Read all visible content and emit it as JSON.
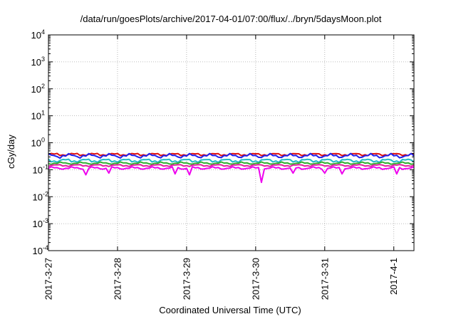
{
  "chart_data": {
    "type": "line",
    "title": "/data/run/goesPlots/archive/2017-04-01/07:00/flux/../bryn/5daysMoon.plot",
    "xlabel": "Coordinated Universal Time (UTC)",
    "ylabel": "cGy/day",
    "y_scale": "log",
    "ylim": [
      0.0001,
      10000
    ],
    "y_ticks": [
      {
        "value": 0.0001,
        "base": "10",
        "exp": "-4"
      },
      {
        "value": 0.001,
        "base": "10",
        "exp": "-3"
      },
      {
        "value": 0.01,
        "base": "10",
        "exp": "-2"
      },
      {
        "value": 0.1,
        "base": "10",
        "exp": "-1"
      },
      {
        "value": 1,
        "base": "10",
        "exp": "0"
      },
      {
        "value": 10,
        "base": "10",
        "exp": "1"
      },
      {
        "value": 100,
        "base": "10",
        "exp": "2"
      },
      {
        "value": 1000,
        "base": "10",
        "exp": "3"
      },
      {
        "value": 10000,
        "base": "10",
        "exp": "4"
      }
    ],
    "xlim": [
      "2017-03-27 00:00",
      "2017-04-01 07:00"
    ],
    "x_ticks": [
      "2017-3-27",
      "2017-3-28",
      "2017-3-29",
      "2017-3-30",
      "2017-3-31",
      "2017-4-1"
    ],
    "grid": true,
    "series": [
      {
        "color": "#e01010",
        "base": 0.37,
        "amp": 0.05
      },
      {
        "color": "#2020ee",
        "base": 0.33,
        "amp": 0.07
      },
      {
        "color": "#22b8c8",
        "base": 0.22,
        "amp": 0.04
      },
      {
        "color": "#30b030",
        "base": 0.175,
        "amp": 0.02
      },
      {
        "color": "#e020a0",
        "base": 0.145,
        "amp": 0.015
      },
      {
        "color": "#ee00ee",
        "base": 0.115,
        "amp": 0.015,
        "dips": [
          [
            "2017-03-27 13:00",
            0.065
          ],
          [
            "2017-03-27 21:00",
            0.075
          ],
          [
            "2017-03-28 20:00",
            0.07
          ],
          [
            "2017-03-29 01:00",
            0.065
          ],
          [
            "2017-03-30 02:00",
            0.034
          ],
          [
            "2017-03-30 13:00",
            0.075
          ],
          [
            "2017-03-31 00:00",
            0.075
          ],
          [
            "2017-03-31 06:00",
            0.07
          ],
          [
            "2017-04-01 01:00",
            0.07
          ]
        ]
      }
    ]
  }
}
